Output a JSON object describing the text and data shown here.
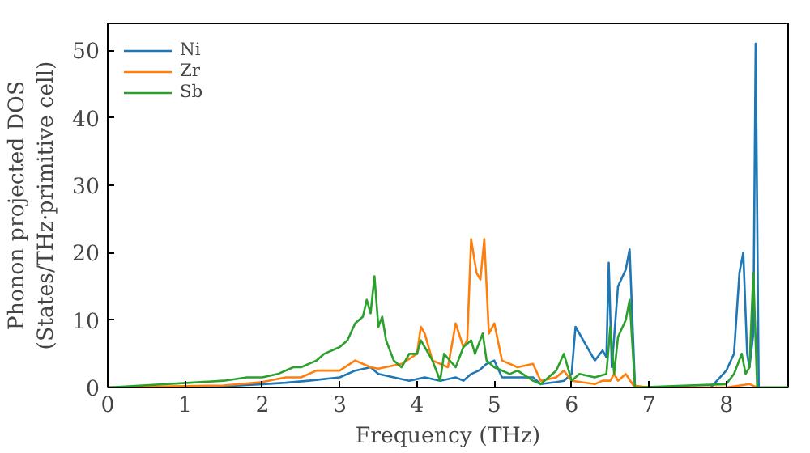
{
  "chart_data": {
    "type": "line",
    "xlabel": "Frequency (THz)",
    "ylabel": "Phonon projected DOS\n(States/THz·primitive cell)",
    "xlim": [
      0,
      8.8
    ],
    "ylim": [
      0,
      54
    ],
    "xticks": [
      0,
      1,
      2,
      3,
      4,
      5,
      6,
      7,
      8
    ],
    "yticks": [
      0,
      10,
      20,
      30,
      40,
      50
    ],
    "legend": "top left",
    "grid": false,
    "series": [
      {
        "name": "Ni",
        "color": "#1f77b4",
        "x": [
          0,
          1,
          1.5,
          2,
          2.3,
          2.6,
          3,
          3.2,
          3.4,
          3.5,
          3.7,
          3.9,
          4.1,
          4.3,
          4.5,
          4.6,
          4.7,
          4.8,
          4.9,
          5.0,
          5.1,
          5.3,
          5.5,
          5.6,
          5.8,
          5.9,
          6.0,
          6.05,
          6.15,
          6.3,
          6.4,
          6.45,
          6.48,
          6.52,
          6.6,
          6.7,
          6.75,
          6.82,
          7.8,
          8.0,
          8.1,
          8.17,
          8.22,
          8.27,
          8.3,
          8.35,
          8.38,
          8.42,
          8.8
        ],
        "values": [
          0,
          0.1,
          0.2,
          0.5,
          0.7,
          1,
          1.5,
          2.5,
          3,
          2,
          1.5,
          1,
          1.5,
          1,
          1.5,
          1,
          2,
          2.5,
          3.5,
          4,
          1.5,
          1.5,
          1.5,
          0.5,
          0.8,
          1,
          2,
          9,
          7,
          4,
          5.5,
          4.5,
          18.5,
          3,
          15,
          17.5,
          20.5,
          0,
          0,
          2.5,
          5,
          17,
          20,
          5,
          3,
          8,
          51,
          0,
          0
        ]
      },
      {
        "name": "Zr",
        "color": "#ff7f0e",
        "x": [
          0,
          1.5,
          2,
          2.3,
          2.5,
          2.7,
          3,
          3.2,
          3.4,
          3.5,
          3.8,
          4.0,
          4.05,
          4.1,
          4.2,
          4.4,
          4.5,
          4.6,
          4.65,
          4.7,
          4.77,
          4.82,
          4.87,
          4.93,
          5.0,
          5.1,
          5.3,
          5.5,
          5.6,
          5.8,
          5.9,
          6.0,
          6.3,
          6.4,
          6.5,
          6.55,
          6.6,
          6.7,
          6.8,
          7,
          8.0,
          8.3,
          8.4,
          8.8
        ],
        "values": [
          0,
          0.3,
          0.8,
          1.5,
          1.5,
          2.5,
          2.5,
          4,
          3,
          2.8,
          3.5,
          5,
          9,
          8,
          4,
          3,
          9.5,
          6,
          7,
          22,
          17,
          16,
          22,
          8,
          9.5,
          4,
          3,
          3.5,
          1,
          1.5,
          2.5,
          1,
          0.5,
          1,
          1,
          2,
          1,
          2,
          0.3,
          0,
          0,
          0.5,
          0,
          0
        ]
      },
      {
        "name": "Sb",
        "color": "#2ca02c",
        "x": [
          0,
          1.5,
          1.8,
          2,
          2.2,
          2.4,
          2.5,
          2.7,
          2.8,
          3.0,
          3.1,
          3.2,
          3.3,
          3.35,
          3.4,
          3.45,
          3.5,
          3.55,
          3.6,
          3.7,
          3.8,
          3.9,
          4.0,
          4.05,
          4.1,
          4.2,
          4.3,
          4.35,
          4.5,
          4.6,
          4.7,
          4.75,
          4.85,
          4.9,
          5.0,
          5.2,
          5.3,
          5.5,
          5.6,
          5.8,
          5.9,
          6.0,
          6.1,
          6.3,
          6.45,
          6.5,
          6.55,
          6.6,
          6.7,
          6.75,
          6.82,
          8.0,
          8.1,
          8.2,
          8.25,
          8.3,
          8.35,
          8.4,
          8.8
        ],
        "values": [
          0,
          1,
          1.5,
          1.5,
          2,
          3,
          3,
          4,
          5,
          6,
          7,
          9.5,
          10.5,
          13,
          11,
          16.5,
          9,
          10.5,
          7,
          4,
          3,
          5,
          5,
          7,
          6,
          4,
          1,
          5,
          3,
          6,
          7,
          5,
          8,
          4,
          3,
          2,
          2.5,
          1,
          0.5,
          2.5,
          5,
          1,
          2,
          1.5,
          2,
          9,
          2,
          7.5,
          10,
          13,
          0,
          0.5,
          2,
          5,
          2,
          3,
          17,
          0,
          0
        ]
      }
    ]
  }
}
